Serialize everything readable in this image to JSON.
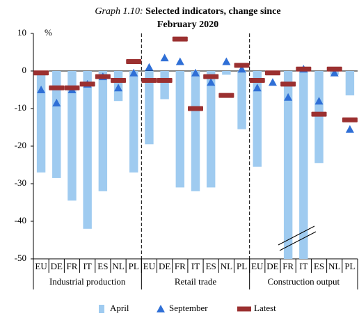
{
  "chart_data": {
    "type": "grouped-bar-marker",
    "title_prefix": "Graph 1.10:",
    "title": "Selected indicators, change since February 2020",
    "y_unit": "%",
    "groups": [
      {
        "name": "Industrial production",
        "size": 7
      },
      {
        "name": "Retail trade",
        "size": 7
      },
      {
        "name": "Construction output",
        "size": 7
      }
    ],
    "categories": [
      "EU",
      "DE",
      "FR",
      "IT",
      "ES",
      "NL",
      "PL",
      "EU",
      "DE",
      "FR",
      "IT",
      "ES",
      "NL",
      "PL",
      "EU",
      "DE",
      "FR",
      "IT",
      "ES",
      "NL",
      "PL"
    ],
    "series": [
      {
        "name": "April",
        "kind": "bar",
        "color": "#9fcbf0",
        "values": [
          -27,
          -28.5,
          -34.5,
          -42,
          -32,
          -8,
          -27,
          -19.5,
          -7.5,
          -31,
          -32,
          -31,
          -1,
          -15.5,
          -25.5,
          -1,
          -50,
          -50,
          -24.5,
          -1,
          -6.5
        ]
      },
      {
        "name": "September",
        "kind": "triangle",
        "color": "#2f6fd6",
        "values": [
          -5,
          -8.5,
          -5,
          -3.5,
          -1.5,
          -4.5,
          -0.5,
          1,
          3.5,
          2.5,
          -0.5,
          -3,
          2.5,
          0.5,
          -4.5,
          -3,
          -7,
          0.5,
          -8,
          -0.5,
          -15.5
        ]
      },
      {
        "name": "Latest",
        "kind": "dash",
        "color": "#9b3030",
        "values": [
          -0.5,
          -4.5,
          -4.5,
          -3.5,
          -1.5,
          -2.5,
          2.5,
          -2.5,
          -2.5,
          8.5,
          -10,
          -1.5,
          -6.5,
          1.5,
          -2.5,
          -0.5,
          -3.5,
          0.5,
          -11.5,
          0.5,
          -13
        ]
      }
    ],
    "ylim": [
      -50,
      10
    ],
    "yticks": [
      -50,
      -40,
      -30,
      -20,
      -10,
      0,
      10
    ]
  }
}
